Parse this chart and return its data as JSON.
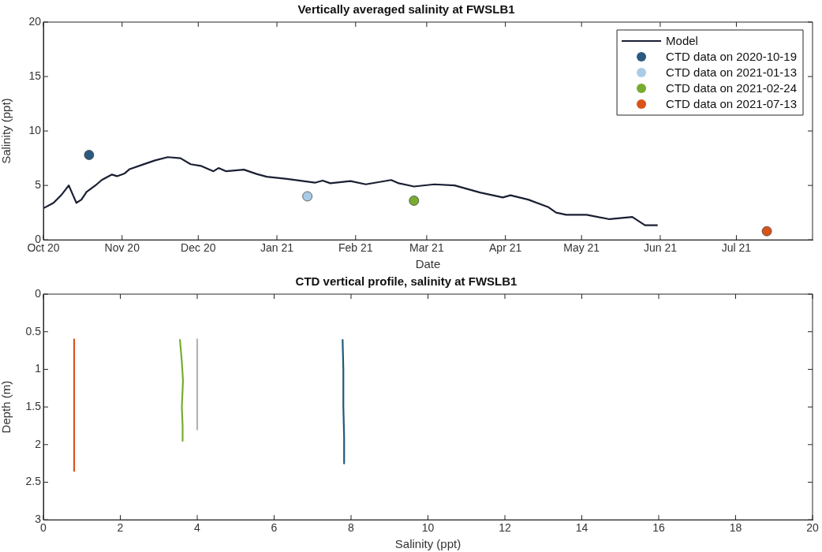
{
  "chart_data": [
    {
      "type": "line",
      "title": "Vertically averaged salinity at FWSLB1",
      "xlabel": "Date",
      "ylabel": "Salinity (ppt)",
      "xlim": [
        "2020-10-01",
        "2021-07-31"
      ],
      "xticks": [
        {
          "value": "2020-10-01",
          "label": "Oct 20"
        },
        {
          "value": "2020-11-01",
          "label": "Nov 20"
        },
        {
          "value": "2020-12-01",
          "label": "Dec 20"
        },
        {
          "value": "2021-01-01",
          "label": "Jan 21"
        },
        {
          "value": "2021-02-01",
          "label": "Feb 21"
        },
        {
          "value": "2021-03-01",
          "label": "Mar 21"
        },
        {
          "value": "2021-04-01",
          "label": "Apr 21"
        },
        {
          "value": "2021-05-01",
          "label": "May 21"
        },
        {
          "value": "2021-06-01",
          "label": "Jun 21"
        },
        {
          "value": "2021-07-01",
          "label": "Jul 21"
        }
      ],
      "ylim": [
        0,
        20
      ],
      "yticks": [
        0,
        5,
        10,
        15,
        20
      ],
      "legend": "top right",
      "series": [
        {
          "name": "Model",
          "type": "line",
          "color": "#1a1f33",
          "x": [
            "2020-10-01",
            "2020-10-05",
            "2020-10-08",
            "2020-10-11",
            "2020-10-14",
            "2020-10-16",
            "2020-10-18",
            "2020-10-22",
            "2020-10-24",
            "2020-10-28",
            "2020-10-30",
            "2020-11-02",
            "2020-11-04",
            "2020-11-09",
            "2020-11-14",
            "2020-11-19",
            "2020-11-24",
            "2020-11-28",
            "2020-12-02",
            "2020-12-07",
            "2020-12-09",
            "2020-12-12",
            "2020-12-19",
            "2020-12-24",
            "2020-12-28",
            "2021-01-05",
            "2021-01-16",
            "2021-01-19",
            "2021-01-22",
            "2021-01-30",
            "2021-02-05",
            "2021-02-15",
            "2021-02-18",
            "2021-02-24",
            "2021-03-04",
            "2021-03-12",
            "2021-03-22",
            "2021-03-31",
            "2021-04-03",
            "2021-04-10",
            "2021-04-18",
            "2021-04-21",
            "2021-04-25",
            "2021-05-03",
            "2021-05-12",
            "2021-05-21",
            "2021-05-26",
            "2021-05-31"
          ],
          "values": [
            2.9,
            3.4,
            4.1,
            5.0,
            3.4,
            3.7,
            4.4,
            5.1,
            5.5,
            6.0,
            5.85,
            6.1,
            6.5,
            6.9,
            7.3,
            7.6,
            7.5,
            6.95,
            6.8,
            6.3,
            6.6,
            6.3,
            6.45,
            6.05,
            5.8,
            5.6,
            5.25,
            5.45,
            5.2,
            5.4,
            5.1,
            5.5,
            5.2,
            4.9,
            5.1,
            5.0,
            4.35,
            3.9,
            4.1,
            3.7,
            3.0,
            2.5,
            2.3,
            2.3,
            1.9,
            2.1,
            1.35,
            1.35
          ]
        },
        {
          "name": "CTD data on 2020-10-19",
          "type": "scatter",
          "marker": "circle",
          "color": "#2b5a80",
          "x": [
            "2020-10-19"
          ],
          "values": [
            7.8
          ]
        },
        {
          "name": "CTD data on 2021-01-13",
          "type": "scatter",
          "marker": "circle",
          "color": "#a8cce6",
          "x": [
            "2021-01-13"
          ],
          "values": [
            4.0
          ]
        },
        {
          "name": "CTD data on 2021-02-24",
          "type": "scatter",
          "marker": "circle",
          "color": "#77ac30",
          "x": [
            "2021-02-24"
          ],
          "values": [
            3.6
          ]
        },
        {
          "name": "CTD data on 2021-07-13",
          "type": "scatter",
          "marker": "circle",
          "color": "#d95319",
          "x": [
            "2021-07-13"
          ],
          "values": [
            0.8
          ]
        }
      ]
    },
    {
      "type": "line",
      "title": "CTD vertical profile, salinity at FWSLB1",
      "xlabel": "Salinity (ppt)",
      "ylabel": "Depth (m)",
      "xlim": [
        0,
        20
      ],
      "xticks": [
        0,
        2,
        4,
        6,
        8,
        10,
        12,
        14,
        16,
        18,
        20
      ],
      "ylim": [
        3,
        0
      ],
      "yticks": [
        0,
        0.5,
        1,
        1.5,
        2,
        2.5,
        3
      ],
      "series": [
        {
          "type": "line",
          "color": "#d95319",
          "x": [
            0.8,
            0.8,
            0.8,
            0.8
          ],
          "values": [
            0.6,
            1.2,
            1.8,
            2.35
          ]
        },
        {
          "type": "line",
          "color": "#77ac30",
          "x": [
            3.55,
            3.6,
            3.63,
            3.6,
            3.62,
            3.62
          ],
          "values": [
            0.6,
            0.9,
            1.15,
            1.5,
            1.75,
            1.95
          ]
        },
        {
          "type": "line",
          "color": "#b4b4b4",
          "x": [
            4.0,
            4.0,
            4.0
          ],
          "values": [
            0.6,
            1.2,
            1.8
          ]
        },
        {
          "type": "line",
          "color": "#1f5a7a",
          "x": [
            7.78,
            7.8,
            7.8,
            7.82,
            7.82
          ],
          "values": [
            0.6,
            1.0,
            1.5,
            1.9,
            2.25
          ]
        }
      ]
    }
  ]
}
